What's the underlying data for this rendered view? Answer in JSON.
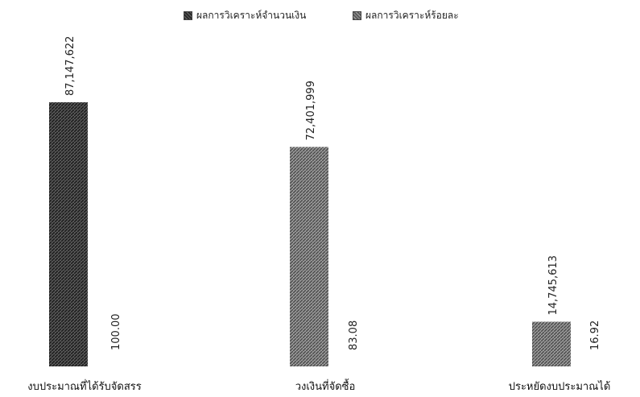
{
  "chart_data": {
    "type": "bar",
    "title": "",
    "xlabel": "",
    "ylabel": "",
    "categories": [
      "งบประมาณที่ได้รับจัดสรร",
      "วงเงินที่จัดซื้อ",
      "ประหยัดงบประมาณได้"
    ],
    "series": [
      {
        "name": "ผลการวิเคราะห์จำนวนเงิน",
        "values": [
          87147622,
          72401999,
          14745613
        ],
        "labels": [
          "87,147,622",
          "72,401,999",
          "14,745,613"
        ],
        "color": "#3a3a3a"
      },
      {
        "name": "ผลการวิเคราะห์ร้อยละ",
        "values": [
          100.0,
          83.08,
          16.92
        ],
        "labels": [
          "100.00",
          "83.08",
          "16.92"
        ],
        "color": "#8a8a8a"
      }
    ],
    "legend_position": "top",
    "grid": false,
    "value_labels_rotated": true
  }
}
